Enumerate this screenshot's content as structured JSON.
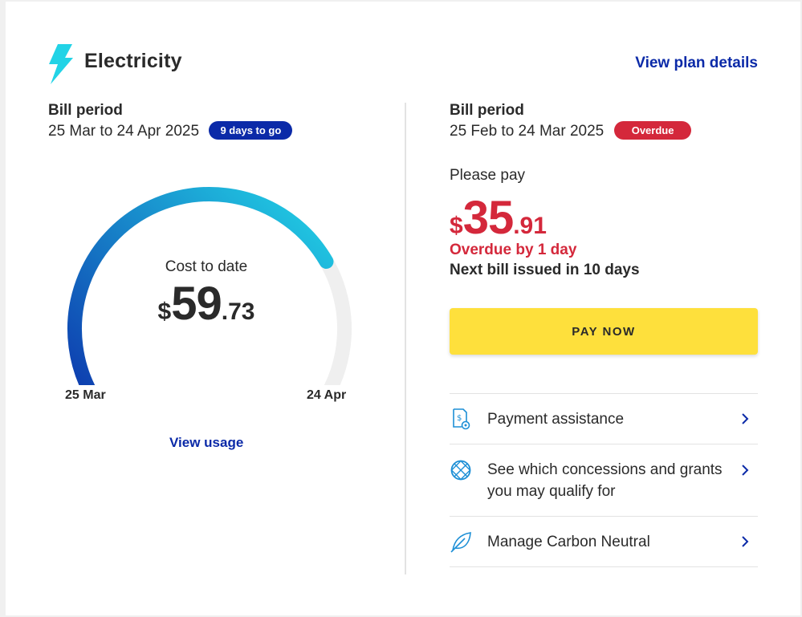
{
  "header": {
    "title": "Electricity",
    "plan_link": "View plan details",
    "icon": "lightning-bolt-icon",
    "accent_color": "#22d3e6"
  },
  "current_period": {
    "label": "Bill period",
    "dates": "25 Mar to 24 Apr 2025",
    "badge": "9 days to go",
    "gauge": {
      "label": "Cost to date",
      "currency": "$",
      "dollars": "59",
      "cents": ".73",
      "start_label": "25 Mar",
      "end_label": "24 Apr",
      "progress": 0.7,
      "gradient_start": "#0b2aa8",
      "gradient_end": "#22d3e6",
      "track_color": "#efefef"
    },
    "view_usage": "View usage"
  },
  "previous_period": {
    "label": "Bill period",
    "dates": "25 Feb to 24 Mar 2025",
    "badge": "Overdue",
    "please_pay": "Please pay",
    "currency": "$",
    "dollars": "35",
    "cents": ".91",
    "overdue_text": "Overdue by 1 day",
    "next_bill": "Next bill issued in 10 days",
    "pay_button": "PAY NOW"
  },
  "links": [
    {
      "icon": "payment-assistance-icon",
      "label": "Payment assistance"
    },
    {
      "icon": "concessions-globe-icon",
      "label": "See which concessions and grants you may qualify for"
    },
    {
      "icon": "leaf-icon",
      "label": "Manage Carbon Neutral"
    }
  ],
  "colors": {
    "link_blue": "#0b2aa8",
    "alert_red": "#d4283b",
    "button_yellow": "#fee03c"
  }
}
